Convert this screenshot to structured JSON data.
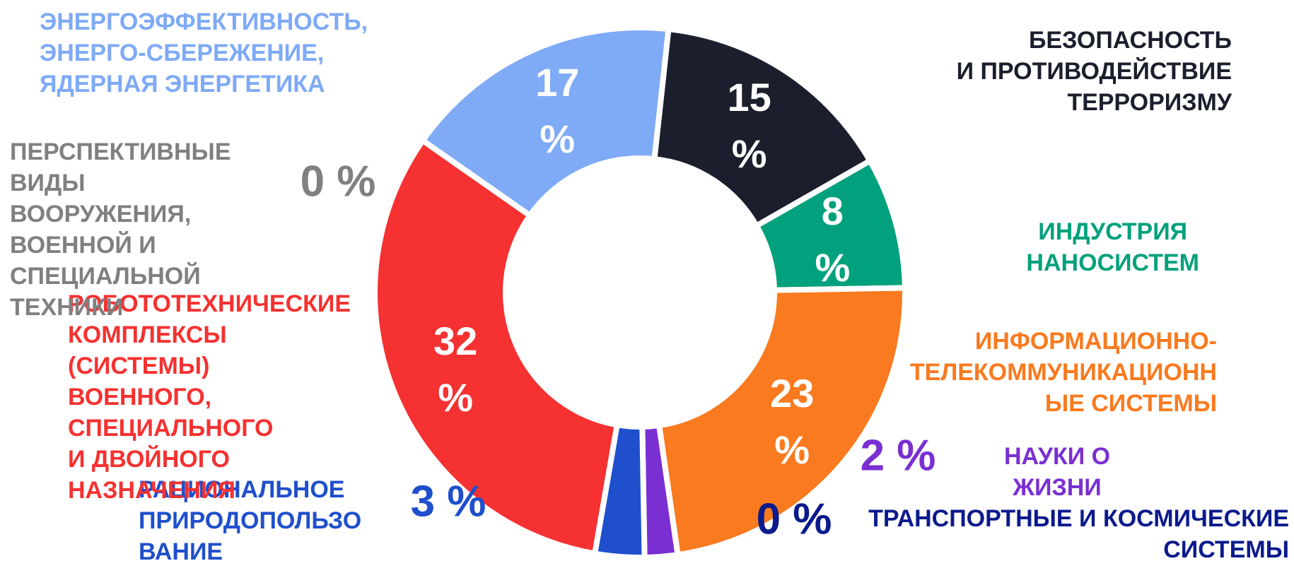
{
  "chart_data": {
    "type": "donut",
    "categories": [
      "ЭНЕРГОЭФФЕКТИВНОСТЬ,\nЭНЕРГО-СБЕРЕЖЕНИЕ,\nЯДЕРНАЯ ЭНЕРГЕТИКА",
      "БЕЗОПАСНОСТЬ\nИ ПРОТИВОДЕЙСТВИЕ\nТЕРРОРИЗМУ",
      "ИНДУСТРИЯ\nНАНОСИСТЕМ",
      "ИНФОРМАЦИОННО-\nТЕЛЕКОММУНИКАЦИОНН\nЫЕ СИСТЕМЫ",
      "ТРАНСПОРТНЫЕ И КОСМИЧЕСКИЕ\nСИСТЕМЫ",
      "НАУКИ О\nЖИЗНИ",
      "РАЦИОНАЛЬНОЕ\nПРИРОДОПОЛЬЗО\nВАНИЕ",
      "РОБОТОТЕХНИЧЕСКИЕ\nКОМПЛЕКСЫ\n(СИСТЕМЫ)\nВОЕННОГО,\nСПЕЦИАЛЬНОГО\nИ ДВОЙНОГО\nНАЗНАЧЕНИЯ",
      "ПЕРСПЕКТИВНЫЕ\nВИДЫ\nВООРУЖЕНИЯ,\nВОЕННОЙ И\nСПЕЦИАЛЬНОЙ\nТЕХНИКИ"
    ],
    "values": [
      17,
      15,
      8,
      23,
      0,
      2,
      3,
      32,
      0
    ],
    "value_labels": [
      "17 %",
      "15 %",
      "8 %",
      "23 %",
      "0 %",
      "2 %",
      "3 %",
      "32 %",
      "0 %"
    ],
    "colors": [
      "#7eaaf6",
      "#1b1f2d",
      "#00a17c",
      "#f97a1f",
      "#0b1a8c",
      "#7a2fd2",
      "#1f4fcc",
      "#f53131",
      "#808080"
    ]
  }
}
